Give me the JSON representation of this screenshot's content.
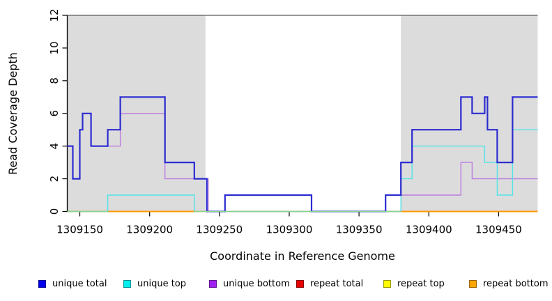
{
  "chart_data": {
    "type": "step-line",
    "title": "",
    "xlabel": "Coordinate in Reference Genome",
    "ylabel": "Read Coverage Depth",
    "xlim": [
      1309141,
      1309478
    ],
    "ylim": [
      0,
      12
    ],
    "x_ticks": [
      1309150,
      1309200,
      1309250,
      1309300,
      1309350,
      1309400,
      1309450
    ],
    "y_ticks": [
      0,
      2,
      4,
      6,
      8,
      10,
      12
    ],
    "grid": false,
    "legend_position": "bottom",
    "shaded_regions": [
      {
        "name": "repeat-region-left",
        "x0": 1309141,
        "x1": 1309240,
        "color": "#DCDCDC"
      },
      {
        "name": "repeat-region-right",
        "x0": 1309380,
        "x1": 1309478,
        "color": "#DCDCDC"
      }
    ],
    "series": [
      {
        "name": "repeat total",
        "color": "#E60000",
        "width": 1.5,
        "steps": [
          [
            1309141,
            0
          ]
        ]
      },
      {
        "name": "repeat top",
        "color": "#FFEE00",
        "width": 1.5,
        "steps": [
          [
            1309141,
            0
          ]
        ]
      },
      {
        "name": "repeat bottom",
        "color": "#FF9800",
        "width": 2,
        "steps": [
          [
            1309141,
            0
          ]
        ]
      },
      {
        "name": "unique bottom",
        "color": "#BC7CDF",
        "width": 1.4,
        "steps": [
          [
            1309141,
            4
          ],
          [
            1309145,
            2
          ],
          [
            1309150,
            5
          ],
          [
            1309152,
            6
          ],
          [
            1309158,
            4
          ],
          [
            1309179,
            6
          ],
          [
            1309211,
            2
          ],
          [
            1309242,
            0
          ],
          [
            1309380,
            1
          ],
          [
            1309423,
            3
          ],
          [
            1309431,
            2
          ]
        ]
      },
      {
        "name": "unique top",
        "color": "#53E3E6",
        "width": 1.4,
        "steps": [
          [
            1309141,
            0
          ],
          [
            1309170,
            1
          ],
          [
            1309232,
            0
          ],
          [
            1309380,
            2
          ],
          [
            1309388,
            4
          ],
          [
            1309440,
            3
          ],
          [
            1309449,
            1
          ],
          [
            1309460,
            5
          ]
        ]
      },
      {
        "name": "unique total",
        "color": "#2B2BD1",
        "width": 2.2,
        "steps": [
          [
            1309141,
            4
          ],
          [
            1309145,
            2
          ],
          [
            1309150,
            5
          ],
          [
            1309152,
            6
          ],
          [
            1309158,
            4
          ],
          [
            1309170,
            5
          ],
          [
            1309179,
            7
          ],
          [
            1309211,
            3
          ],
          [
            1309232,
            2
          ],
          [
            1309241,
            0
          ],
          [
            1309254,
            1
          ],
          [
            1309316,
            0
          ],
          [
            1309369,
            1
          ],
          [
            1309380,
            3
          ],
          [
            1309388,
            5
          ],
          [
            1309423,
            7
          ],
          [
            1309431,
            6
          ],
          [
            1309440,
            7
          ],
          [
            1309442,
            5
          ],
          [
            1309449,
            3
          ],
          [
            1309460,
            7
          ]
        ]
      }
    ],
    "baseline_blend_segments": [
      {
        "x0": 1309141,
        "x1": 1309170,
        "color": "#8ED292"
      },
      {
        "x0": 1309232,
        "x1": 1309380,
        "color": "#8ED292"
      }
    ],
    "legend": [
      {
        "label": "unique total",
        "color": "#0000EE"
      },
      {
        "label": "unique top",
        "color": "#00EEEE"
      },
      {
        "label": "unique bottom",
        "color": "#A020F0"
      },
      {
        "label": "repeat total",
        "color": "#E60000"
      },
      {
        "label": "repeat top",
        "color": "#FFFF00"
      },
      {
        "label": "repeat bottom",
        "color": "#FFA500"
      }
    ]
  }
}
